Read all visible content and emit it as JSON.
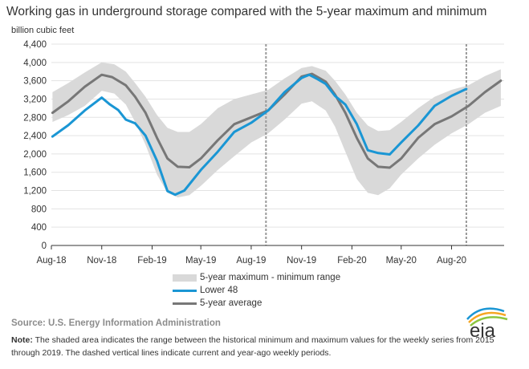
{
  "title": "Working gas in underground  storage compared with the 5-year maximum and minimum",
  "unit_label": "billion cubic feet",
  "legend": {
    "range": "5-year maximum - minimum range",
    "lower48": "Lower 48",
    "avg": "5-year average"
  },
  "source": "Source:  U.S. Energy Information Administration",
  "note_label": "Note:",
  "note_text": " The shaded area indicates the range between the historical minimum and maximum values for the weekly series from 2015 through 2019. The dashed vertical lines indicate current and year-ago weekly periods.",
  "logo_text": "eia",
  "colors": {
    "range": "#d9d9d9",
    "lower48": "#1a96d4",
    "avg": "#777777",
    "dashed": "#999999"
  },
  "chart_data": {
    "type": "area",
    "x_tick_labels": [
      "Aug-18",
      "Nov-18",
      "Feb-19",
      "May-19",
      "Aug-19",
      "Nov-19",
      "Feb-20",
      "May-20",
      "Aug-20"
    ],
    "ylim": [
      0,
      4400
    ],
    "y_ticks": [
      0,
      400,
      800,
      1200,
      1600,
      2000,
      2400,
      2800,
      3200,
      3600,
      4000,
      4400
    ],
    "dashed_lines": [
      "2019-08-28",
      "2020-08-28"
    ],
    "series": [
      {
        "name": "5-year maximum - minimum range",
        "kind": "band",
        "x": [
          "2018-08-03",
          "2018-09-01",
          "2018-10-01",
          "2018-11-01",
          "2018-11-24",
          "2018-12-15",
          "2019-01-01",
          "2019-01-20",
          "2019-02-10",
          "2019-03-01",
          "2019-03-20",
          "2019-04-10",
          "2019-05-01",
          "2019-06-01",
          "2019-07-01",
          "2019-08-01",
          "2019-09-01",
          "2019-10-01",
          "2019-11-01",
          "2019-11-20",
          "2019-12-15",
          "2020-01-01",
          "2020-01-20",
          "2020-02-10",
          "2020-03-01",
          "2020-03-20",
          "2020-04-10",
          "2020-05-01",
          "2020-06-01",
          "2020-07-01",
          "2020-08-01",
          "2020-09-01",
          "2020-10-01",
          "2020-10-30"
        ],
        "max": [
          3350,
          3550,
          3780,
          4000,
          3960,
          3800,
          3550,
          3250,
          2850,
          2570,
          2480,
          2480,
          2650,
          3000,
          3200,
          3300,
          3400,
          3650,
          3880,
          3920,
          3820,
          3600,
          3300,
          2900,
          2620,
          2500,
          2520,
          2700,
          3000,
          3250,
          3400,
          3500,
          3700,
          3850
        ],
        "min": [
          2700,
          2850,
          3050,
          3380,
          3320,
          3080,
          2700,
          2200,
          1550,
          1150,
          1050,
          1100,
          1300,
          1650,
          1950,
          2250,
          2450,
          2750,
          3100,
          3150,
          2950,
          2600,
          2050,
          1450,
          1150,
          1100,
          1250,
          1550,
          1900,
          2200,
          2450,
          2650,
          2900,
          3050
        ]
      },
      {
        "name": "Lower 48",
        "x": [
          "2018-08-03",
          "2018-09-01",
          "2018-10-01",
          "2018-11-01",
          "2018-11-16",
          "2018-12-01",
          "2018-12-15",
          "2019-01-01",
          "2019-01-20",
          "2019-02-10",
          "2019-03-01",
          "2019-03-15",
          "2019-04-01",
          "2019-05-01",
          "2019-06-01",
          "2019-07-01",
          "2019-08-01",
          "2019-09-01",
          "2019-10-01",
          "2019-11-01",
          "2019-11-15",
          "2019-12-01",
          "2019-12-15",
          "2020-01-01",
          "2020-01-20",
          "2020-02-10",
          "2020-03-01",
          "2020-03-20",
          "2020-04-10",
          "2020-05-01",
          "2020-06-01",
          "2020-07-01",
          "2020-08-01",
          "2020-08-28"
        ],
        "values": [
          2380,
          2630,
          2950,
          3230,
          3080,
          2960,
          2750,
          2670,
          2400,
          1850,
          1190,
          1110,
          1200,
          1650,
          2050,
          2480,
          2680,
          2950,
          3350,
          3660,
          3730,
          3630,
          3530,
          3270,
          3080,
          2650,
          2080,
          2020,
          1990,
          2250,
          2620,
          3050,
          3270,
          3420
        ]
      },
      {
        "name": "5-year average",
        "x": [
          "2018-08-03",
          "2018-09-01",
          "2018-10-01",
          "2018-11-01",
          "2018-11-20",
          "2018-12-15",
          "2019-01-01",
          "2019-01-20",
          "2019-02-10",
          "2019-03-01",
          "2019-03-20",
          "2019-04-10",
          "2019-05-01",
          "2019-06-01",
          "2019-07-01",
          "2019-08-01",
          "2019-09-01",
          "2019-10-01",
          "2019-11-01",
          "2019-11-20",
          "2019-12-15",
          "2020-01-01",
          "2020-01-20",
          "2020-02-10",
          "2020-03-01",
          "2020-03-20",
          "2020-04-10",
          "2020-05-01",
          "2020-06-01",
          "2020-07-01",
          "2020-08-01",
          "2020-09-01",
          "2020-10-01",
          "2020-10-30"
        ],
        "values": [
          2900,
          3150,
          3470,
          3730,
          3680,
          3500,
          3250,
          2900,
          2350,
          1900,
          1720,
          1710,
          1900,
          2300,
          2650,
          2800,
          2950,
          3300,
          3690,
          3750,
          3580,
          3300,
          2900,
          2350,
          1900,
          1720,
          1700,
          1900,
          2350,
          2650,
          2820,
          3050,
          3350,
          3600
        ]
      }
    ]
  }
}
